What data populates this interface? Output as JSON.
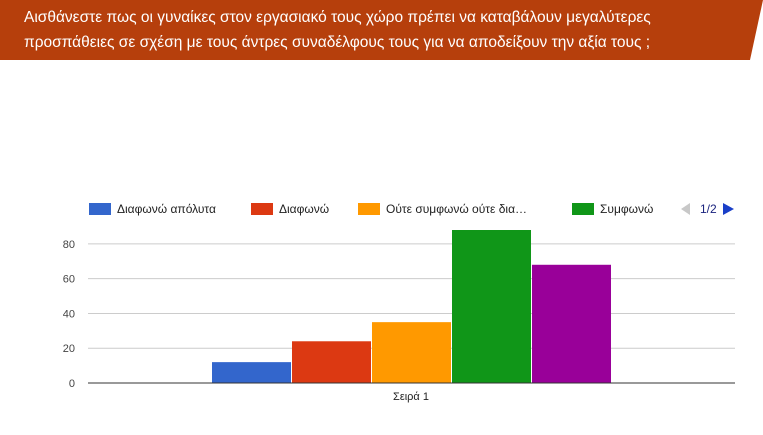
{
  "question": {
    "line1": "Αισθάνεστε πως οι γυναίκες στον εργασιακό τους χώρο πρέπει να καταβάλουν μεγαλύτερες",
    "line2": "προσπάθειες σε σχέση με τους άντρες συναδέλφους τους για να αποδείξουν την αξία τους ;"
  },
  "colors": {
    "banner": "#b63f0c",
    "series": [
      "#3366cc",
      "#dc3912",
      "#ff9900",
      "#109618",
      "#990099"
    ]
  },
  "legend": {
    "visible_entries": [
      "Διαφωνώ απόλυτα",
      "Διαφωνώ",
      "Ούτε συμφωνώ ούτε δια…",
      "Συμφωνώ"
    ],
    "page_indicator": "1/2",
    "prev_icon": "triangle-left-icon",
    "next_icon": "triangle-right-icon"
  },
  "chart_data": {
    "type": "bar",
    "categories": [
      "Σειρά 1"
    ],
    "series": [
      {
        "values": [
          12
        ]
      },
      {
        "values": [
          24
        ]
      },
      {
        "values": [
          35
        ]
      },
      {
        "values": [
          88
        ]
      },
      {
        "values": [
          68
        ]
      }
    ],
    "ylim": [
      0,
      88
    ],
    "yticks": [
      0,
      20,
      40,
      60,
      80
    ],
    "grid": true,
    "legend_position": "top",
    "title": "",
    "xlabel": "",
    "ylabel": ""
  }
}
